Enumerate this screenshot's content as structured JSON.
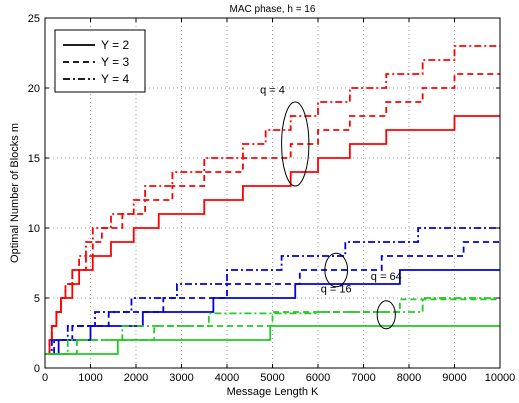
{
  "chart_data": {
    "type": "line",
    "title": "MAC phase, h = 16",
    "xlabel": "Message Length K",
    "ylabel": "Optimal Number of Blocks m",
    "xlim": [
      0,
      10000
    ],
    "ylim": [
      0,
      25
    ],
    "xticks": [
      0,
      1000,
      2000,
      3000,
      4000,
      5000,
      6000,
      7000,
      8000,
      9000,
      10000
    ],
    "yticks": [
      0,
      5,
      10,
      15,
      20,
      25
    ],
    "grid": true,
    "legend": {
      "position": "top-left",
      "entries": [
        {
          "label": "Y = 2",
          "style": "solid"
        },
        {
          "label": "Y = 3",
          "style": "dashed"
        },
        {
          "label": "Y = 4",
          "style": "dashdot"
        }
      ]
    },
    "annotations": [
      {
        "text": "q = 4",
        "x": 5500,
        "y": 16,
        "rx": 300,
        "ry": 3
      },
      {
        "text": "q = 16",
        "x": 6400,
        "y": 7,
        "rx": 250,
        "ry": 1.2
      },
      {
        "text": "q = 64",
        "x": 7500,
        "y": 3.8,
        "rx": 200,
        "ry": 1
      }
    ],
    "colors": {
      "q4": "#ff0000",
      "q16": "#0000dd",
      "q64": "#22cc22"
    },
    "series": [
      {
        "group": "q = 4",
        "Y": 2,
        "color": "#ff0000",
        "style": "solid",
        "x": [
          50,
          100,
          150,
          250,
          350,
          450,
          600,
          750,
          900,
          1050,
          1250,
          1450,
          1700,
          1950,
          2200,
          2500,
          2800,
          3150,
          3500,
          3900,
          4350,
          4850,
          5400,
          6000,
          6700,
          7500,
          8300,
          9000,
          10000
        ],
        "y": [
          1,
          2,
          3,
          4,
          5,
          5,
          6,
          7,
          7,
          8,
          8,
          9,
          9,
          10,
          10,
          11,
          11,
          11,
          12,
          12,
          13,
          13,
          14,
          15,
          16,
          17,
          17,
          18,
          18
        ]
      },
      {
        "group": "q = 4",
        "Y": 3,
        "color": "#ff0000",
        "style": "dashed",
        "x": [
          50,
          100,
          150,
          250,
          350,
          450,
          600,
          750,
          900,
          1050,
          1250,
          1450,
          1700,
          1950,
          2200,
          2500,
          2800,
          3150,
          3500,
          3900,
          4350,
          4850,
          5400,
          6000,
          6700,
          7500,
          8300,
          9000,
          10000
        ],
        "y": [
          1,
          2,
          3,
          4,
          5,
          6,
          7,
          7,
          8,
          9,
          10,
          10,
          11,
          11,
          12,
          12,
          13,
          13,
          14,
          14,
          15,
          15,
          16,
          17,
          18,
          19,
          20,
          21,
          21
        ]
      },
      {
        "group": "q = 4",
        "Y": 4,
        "color": "#ff0000",
        "style": "dashdot",
        "x": [
          50,
          100,
          150,
          250,
          350,
          450,
          600,
          750,
          900,
          1050,
          1250,
          1450,
          1700,
          1950,
          2200,
          2500,
          2800,
          3150,
          3500,
          3900,
          4350,
          4850,
          5400,
          6000,
          6700,
          7500,
          8300,
          9000,
          10000
        ],
        "y": [
          1,
          2,
          3,
          4,
          5,
          6,
          7,
          8,
          9,
          10,
          10,
          11,
          11,
          12,
          13,
          13,
          14,
          14,
          15,
          15,
          16,
          17,
          18,
          19,
          20,
          21,
          22,
          23,
          23
        ]
      },
      {
        "group": "q = 16",
        "Y": 2,
        "color": "#0000dd",
        "style": "solid",
        "x": [
          0,
          300,
          1000,
          2150,
          3700,
          5500,
          7800,
          10000
        ],
        "y": [
          1,
          2,
          3,
          4,
          5,
          6,
          7,
          7
        ]
      },
      {
        "group": "q = 16",
        "Y": 3,
        "color": "#0000dd",
        "style": "dashed",
        "x": [
          0,
          200,
          600,
          1400,
          2600,
          4000,
          5600,
          7400,
          9200,
          10000
        ],
        "y": [
          1,
          2,
          3,
          4,
          5,
          6,
          7,
          8,
          9,
          9
        ]
      },
      {
        "group": "q = 16",
        "Y": 4,
        "color": "#0000dd",
        "style": "dashdot",
        "x": [
          0,
          150,
          500,
          1100,
          1900,
          2900,
          4000,
          5200,
          6600,
          8200,
          10000
        ],
        "y": [
          1,
          2,
          3,
          4,
          5,
          6,
          7,
          8,
          9,
          10,
          10
        ]
      },
      {
        "group": "q = 64",
        "Y": 2,
        "color": "#22cc22",
        "style": "solid",
        "x": [
          0,
          1600,
          4950,
          10000
        ],
        "y": [
          1,
          2,
          3,
          3
        ]
      },
      {
        "group": "q = 64",
        "Y": 3,
        "color": "#22cc22",
        "style": "dashed",
        "x": [
          0,
          700,
          2400,
          5000,
          7800,
          10000
        ],
        "y": [
          1,
          2,
          3,
          4,
          4.9,
          4.9
        ]
      },
      {
        "group": "q = 64",
        "Y": 4,
        "color": "#22cc22",
        "style": "dashdot",
        "x": [
          0,
          500,
          1700,
          3600,
          6000,
          8300,
          10000
        ],
        "y": [
          1,
          2,
          3,
          3.9,
          4,
          5,
          5
        ]
      }
    ]
  }
}
